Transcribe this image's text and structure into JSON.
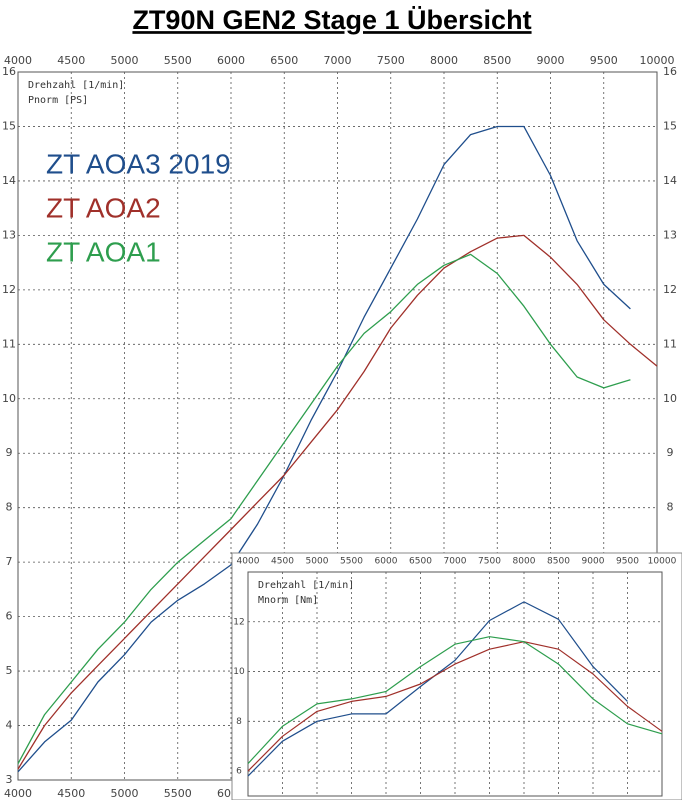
{
  "chart_data": [
    {
      "type": "line",
      "title": "ZT90N GEN2  Stage 1  Übersicht",
      "x_label": "Drehzahl [1/min]",
      "y_label": "Pnorm [PS]",
      "x": [
        4000,
        4250,
        4500,
        4750,
        5000,
        5250,
        5500,
        5750,
        6000,
        6250,
        6500,
        6750,
        7000,
        7250,
        7500,
        7750,
        8000,
        8250,
        8500,
        8750,
        9000,
        9250,
        9500,
        9750,
        10000
      ],
      "series": [
        {
          "name": "ZT AOA3 2019",
          "color": "#1f4e8c",
          "values": [
            3.15,
            3.7,
            4.1,
            4.8,
            5.3,
            5.9,
            6.3,
            6.6,
            6.95,
            7.7,
            8.6,
            9.6,
            10.5,
            11.5,
            12.4,
            13.3,
            14.3,
            14.85,
            15.0,
            15.0,
            14.1,
            12.9,
            12.1,
            11.65,
            null
          ]
        },
        {
          "name": "ZT AOA2",
          "color": "#a0302a",
          "values": [
            3.2,
            4.0,
            4.6,
            5.1,
            5.6,
            6.1,
            6.6,
            7.1,
            7.6,
            8.1,
            8.6,
            9.2,
            9.8,
            10.5,
            11.3,
            11.9,
            12.4,
            12.7,
            12.95,
            13.0,
            12.6,
            12.1,
            11.45,
            11.0,
            10.6
          ]
        },
        {
          "name": "ZT AOA1",
          "color": "#2e9e4e",
          "values": [
            3.3,
            4.2,
            4.8,
            5.4,
            5.9,
            6.5,
            7.0,
            7.4,
            7.8,
            8.5,
            9.2,
            9.9,
            10.6,
            11.2,
            11.6,
            12.1,
            12.45,
            12.65,
            12.3,
            11.7,
            11.0,
            10.4,
            10.2,
            10.35,
            null
          ]
        }
      ],
      "xlim": [
        4000,
        10000
      ],
      "xticks": [
        4000,
        4500,
        5000,
        5500,
        6000,
        6500,
        7000,
        7500,
        8000,
        8500,
        9000,
        9500,
        10000
      ],
      "ylim": [
        3,
        16
      ],
      "yticks": [
        3,
        4,
        5,
        6,
        7,
        8,
        9,
        10,
        11,
        12,
        13,
        14,
        15,
        16
      ],
      "grid": true
    },
    {
      "type": "line",
      "x_label": "Drehzahl [1/min]",
      "y_label": "Mnorm [Nm]",
      "x": [
        4000,
        4500,
        5000,
        5500,
        6000,
        6500,
        7000,
        7500,
        8000,
        8500,
        9000,
        9500,
        10000
      ],
      "series": [
        {
          "color": "#1f4e8c",
          "values": [
            5.8,
            7.2,
            8.0,
            8.3,
            8.3,
            9.4,
            10.45,
            12.05,
            12.8,
            12.1,
            10.2,
            8.8,
            null
          ]
        },
        {
          "color": "#a0302a",
          "values": [
            6.0,
            7.4,
            8.4,
            8.8,
            9.0,
            9.5,
            10.3,
            10.9,
            11.2,
            10.9,
            9.9,
            8.6,
            7.6
          ]
        },
        {
          "color": "#2e9e4e",
          "values": [
            6.3,
            7.8,
            8.7,
            8.9,
            9.2,
            10.2,
            11.1,
            11.4,
            11.2,
            10.3,
            8.9,
            7.9,
            7.5
          ]
        }
      ],
      "xlim": [
        4000,
        10000
      ],
      "xticks": [
        4000,
        4500,
        5000,
        5500,
        6000,
        6500,
        7000,
        7500,
        8000,
        8500,
        9000,
        9500,
        10000
      ],
      "ylim": [
        5,
        14
      ],
      "yticks": [
        6,
        8,
        10,
        12
      ],
      "grid": true
    }
  ]
}
